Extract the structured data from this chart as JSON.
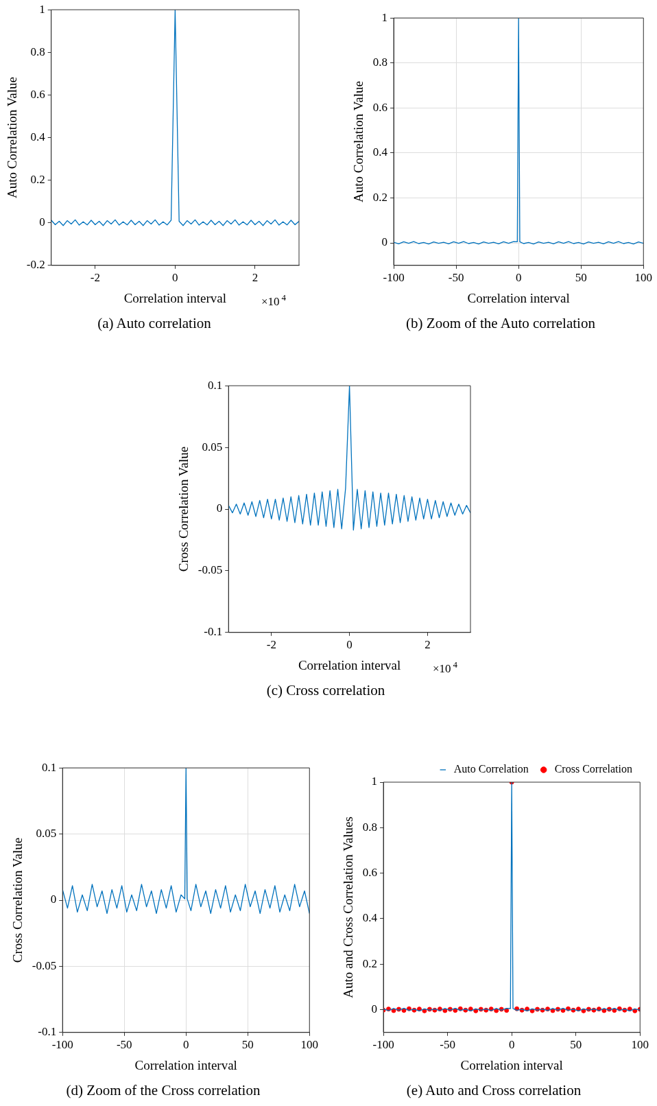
{
  "chart_data": [
    {
      "type": "line",
      "title": "(a)  Auto correlation",
      "xlabel": "Correlation interval",
      "ylabel": "Auto Correlation Value",
      "annotations": [
        "×10$^{4}$"
      ],
      "xlim": [
        -3.1,
        3.1
      ],
      "xticks": [
        -2,
        0,
        2
      ],
      "ylim": [
        -0.2,
        1
      ],
      "yticks": [
        -0.2,
        0,
        0.2,
        0.4,
        0.6,
        0.8,
        1
      ],
      "grid": false,
      "legend": false,
      "x": [
        -3.1,
        -3.0,
        -2.9,
        -2.8,
        -2.7,
        -2.6,
        -2.5,
        -2.4,
        -2.3,
        -2.2,
        -2.1,
        -2.0,
        -1.9,
        -1.8,
        -1.7,
        -1.6,
        -1.5,
        -1.4,
        -1.3,
        -1.2,
        -1.1,
        -1.0,
        -0.9,
        -0.8,
        -0.7,
        -0.6,
        -0.5,
        -0.4,
        -0.3,
        -0.2,
        -0.1,
        0,
        0.1,
        0.2,
        0.3,
        0.4,
        0.5,
        0.6,
        0.7,
        0.8,
        0.9,
        1.0,
        1.1,
        1.2,
        1.3,
        1.4,
        1.5,
        1.6,
        1.7,
        1.8,
        1.9,
        2.0,
        2.1,
        2.2,
        2.3,
        2.4,
        2.5,
        2.6,
        2.7,
        2.8,
        2.9,
        3.0,
        3.1
      ],
      "series": [
        {
          "color": "#0072bd",
          "values": [
            0.012,
            -0.009,
            0.007,
            -0.013,
            0.01,
            -0.006,
            0.014,
            -0.011,
            0.005,
            -0.01,
            0.012,
            -0.009,
            0.007,
            -0.013,
            0.01,
            -0.006,
            0.014,
            -0.011,
            0.005,
            -0.01,
            0.012,
            -0.009,
            0.007,
            -0.013,
            0.01,
            -0.006,
            0.014,
            -0.011,
            0.005,
            -0.01,
            0.012,
            1,
            0.007,
            -0.013,
            0.01,
            -0.006,
            0.014,
            -0.011,
            0.005,
            -0.01,
            0.012,
            -0.009,
            0.007,
            -0.013,
            0.01,
            -0.006,
            0.014,
            -0.011,
            0.005,
            -0.01,
            0.012,
            -0.009,
            0.007,
            -0.013,
            0.01,
            -0.006,
            0.014,
            -0.011,
            0.005,
            -0.01,
            0.012,
            -0.009,
            0.007
          ]
        }
      ]
    },
    {
      "type": "line",
      "title": "(b) Zoom of the Auto correlation",
      "xlabel": "Correlation interval",
      "ylabel": "Auto Correlation Value",
      "xlim": [
        -100,
        100
      ],
      "xticks": [
        -100,
        -50,
        0,
        50,
        100
      ],
      "ylim": [
        -0.1,
        1
      ],
      "yticks": [
        0,
        0.2,
        0.4,
        0.6,
        0.8,
        1
      ],
      "grid": true,
      "legend": false,
      "x": [
        -100,
        -96,
        -92,
        -88,
        -84,
        -80,
        -76,
        -72,
        -68,
        -64,
        -60,
        -56,
        -52,
        -48,
        -44,
        -40,
        -36,
        -32,
        -28,
        -24,
        -20,
        -16,
        -12,
        -8,
        -4,
        -1,
        0,
        1,
        4,
        8,
        12,
        16,
        20,
        24,
        28,
        32,
        36,
        40,
        44,
        48,
        52,
        56,
        60,
        64,
        68,
        72,
        76,
        80,
        84,
        88,
        92,
        96,
        100
      ],
      "series": [
        {
          "color": "#0072bd",
          "values": [
            0.003,
            -0.004,
            0.005,
            -0.002,
            0.006,
            -0.003,
            0.002,
            -0.005,
            0.004,
            -0.002,
            0.003,
            -0.004,
            0.005,
            -0.002,
            0.006,
            -0.003,
            0.002,
            -0.005,
            0.004,
            -0.002,
            0.003,
            -0.004,
            0.005,
            -0.002,
            0.006,
            0.005,
            1,
            0.005,
            -0.003,
            0.002,
            -0.005,
            0.004,
            -0.002,
            0.003,
            -0.004,
            0.005,
            -0.002,
            0.006,
            -0.003,
            0.002,
            -0.005,
            0.004,
            -0.002,
            0.003,
            -0.004,
            0.005,
            -0.002,
            0.006,
            -0.003,
            0.002,
            -0.005,
            0.004,
            -0.002
          ]
        }
      ]
    },
    {
      "type": "line",
      "title": "(c)  Cross correlation",
      "xlabel": "Correlation interval",
      "ylabel": "Cross Correlation Value",
      "annotations": [
        "×10$^{4}$"
      ],
      "xlim": [
        -3.1,
        3.1
      ],
      "xticks": [
        -2,
        0,
        2
      ],
      "ylim": [
        -0.1,
        0.1
      ],
      "yticks": [
        -0.1,
        -0.05,
        0,
        0.05,
        0.1
      ],
      "grid": false,
      "legend": false,
      "x": [
        -3.1,
        -3.0,
        -2.9,
        -2.8,
        -2.7,
        -2.6,
        -2.5,
        -2.4,
        -2.3,
        -2.2,
        -2.1,
        -2.0,
        -1.9,
        -1.8,
        -1.7,
        -1.6,
        -1.5,
        -1.4,
        -1.3,
        -1.2,
        -1.1,
        -1.0,
        -0.9,
        -0.8,
        -0.7,
        -0.6,
        -0.5,
        -0.4,
        -0.3,
        -0.2,
        -0.1,
        0,
        0.1,
        0.2,
        0.3,
        0.4,
        0.5,
        0.6,
        0.7,
        0.8,
        0.9,
        1.0,
        1.1,
        1.2,
        1.3,
        1.4,
        1.5,
        1.6,
        1.7,
        1.8,
        1.9,
        2.0,
        2.1,
        2.2,
        2.3,
        2.4,
        2.5,
        2.6,
        2.7,
        2.8,
        2.9,
        3.0,
        3.1
      ],
      "series": [
        {
          "color": "#0072bd",
          "values": [
            0.003,
            -0.003,
            0.004,
            -0.004,
            0.005,
            -0.005,
            0.006,
            -0.006,
            0.007,
            -0.007,
            0.008,
            -0.008,
            0.008,
            -0.009,
            0.009,
            -0.01,
            0.01,
            -0.011,
            0.011,
            -0.012,
            0.012,
            -0.013,
            0.013,
            -0.013,
            0.014,
            -0.014,
            0.015,
            -0.015,
            0.016,
            -0.016,
            0.017,
            0.1,
            -0.017,
            0.016,
            -0.016,
            0.015,
            -0.015,
            0.014,
            -0.014,
            0.013,
            -0.013,
            0.013,
            -0.012,
            0.012,
            -0.011,
            0.011,
            -0.01,
            0.01,
            -0.009,
            0.009,
            -0.008,
            0.008,
            -0.008,
            0.007,
            -0.007,
            0.006,
            -0.006,
            0.005,
            -0.005,
            0.004,
            -0.004,
            0.003,
            -0.003
          ]
        }
      ]
    },
    {
      "type": "line",
      "title": "(d) Zoom of the Cross correlation",
      "xlabel": "Correlation interval",
      "ylabel": "Cross Correlation Value",
      "xlim": [
        -100,
        100
      ],
      "xticks": [
        -100,
        -50,
        0,
        50,
        100
      ],
      "ylim": [
        -0.1,
        0.1
      ],
      "yticks": [
        -0.1,
        -0.05,
        0,
        0.05,
        0.1
      ],
      "grid": true,
      "legend": false,
      "x": [
        -100,
        -96,
        -92,
        -88,
        -84,
        -80,
        -76,
        -72,
        -68,
        -64,
        -60,
        -56,
        -52,
        -48,
        -44,
        -40,
        -36,
        -32,
        -28,
        -24,
        -20,
        -16,
        -12,
        -8,
        -4,
        -1,
        0,
        1,
        4,
        8,
        12,
        16,
        20,
        24,
        28,
        32,
        36,
        40,
        44,
        48,
        52,
        56,
        60,
        64,
        68,
        72,
        76,
        80,
        84,
        88,
        92,
        96,
        100
      ],
      "series": [
        {
          "color": "#0072bd",
          "values": [
            0.008,
            -0.006,
            0.011,
            -0.009,
            0.004,
            -0.008,
            0.012,
            -0.005,
            0.007,
            -0.01,
            0.008,
            -0.006,
            0.011,
            -0.009,
            0.004,
            -0.008,
            0.012,
            -0.005,
            0.007,
            -0.01,
            0.008,
            -0.006,
            0.011,
            -0.009,
            0.004,
            0.001,
            0.1,
            0.001,
            -0.008,
            0.012,
            -0.005,
            0.007,
            -0.01,
            0.008,
            -0.006,
            0.011,
            -0.009,
            0.004,
            -0.008,
            0.012,
            -0.005,
            0.007,
            -0.01,
            0.008,
            -0.006,
            0.011,
            -0.009,
            0.004,
            -0.008,
            0.012,
            -0.005,
            0.007,
            -0.01
          ]
        }
      ]
    },
    {
      "type": "line",
      "title": "(e) Auto and Cross correlation",
      "xlabel": "Correlation interval",
      "ylabel": "Auto and Cross Correlation Values",
      "xlim": [
        -100,
        100
      ],
      "xticks": [
        -100,
        -50,
        0,
        50,
        100
      ],
      "ylim": [
        -0.1,
        1
      ],
      "yticks": [
        0,
        0.2,
        0.4,
        0.6,
        0.8,
        1
      ],
      "grid": false,
      "legend": "top right",
      "x": [
        -100,
        -96,
        -92,
        -88,
        -84,
        -80,
        -76,
        -72,
        -68,
        -64,
        -60,
        -56,
        -52,
        -48,
        -44,
        -40,
        -36,
        -32,
        -28,
        -24,
        -20,
        -16,
        -12,
        -8,
        -4,
        -1,
        0,
        1,
        4,
        8,
        12,
        16,
        20,
        24,
        28,
        32,
        36,
        40,
        44,
        48,
        52,
        56,
        60,
        64,
        68,
        72,
        76,
        80,
        84,
        88,
        92,
        96,
        100
      ],
      "series": [
        {
          "name": "Auto Correlation",
          "color": "#0072bd",
          "values": [
            0.003,
            -0.004,
            0.005,
            -0.002,
            0.006,
            -0.003,
            0.002,
            -0.005,
            0.004,
            -0.002,
            0.003,
            -0.004,
            0.005,
            -0.002,
            0.006,
            -0.003,
            0.002,
            -0.005,
            0.004,
            -0.002,
            0.003,
            -0.004,
            0.005,
            -0.002,
            0.006,
            0.005,
            1,
            0.005,
            -0.003,
            0.002,
            -0.005,
            0.004,
            -0.002,
            0.003,
            -0.004,
            0.005,
            -0.002,
            0.006,
            -0.003,
            0.002,
            -0.005,
            0.004,
            -0.002,
            0.003,
            -0.004,
            0.005,
            -0.002,
            0.006,
            -0.003,
            0.002,
            -0.005,
            0.004,
            -0.002
          ]
        },
        {
          "name": "Cross Correlation",
          "type": "scatter",
          "marker": "circle",
          "color": "#ff0000",
          "x": [
            -100,
            -96,
            -92,
            -88,
            -84,
            -80,
            -76,
            -72,
            -68,
            -64,
            -60,
            -56,
            -52,
            -48,
            -44,
            -40,
            -36,
            -32,
            -28,
            -24,
            -20,
            -16,
            -12,
            -8,
            -4,
            0,
            4,
            8,
            12,
            16,
            20,
            24,
            28,
            32,
            36,
            40,
            44,
            48,
            52,
            56,
            60,
            64,
            68,
            72,
            76,
            80,
            84,
            88,
            92,
            96,
            100
          ],
          "values": [
            -0.002,
            0.003,
            -0.004,
            0.002,
            -0.003,
            0.004,
            -0.002,
            0.003,
            -0.005,
            0.002,
            -0.002,
            0.003,
            -0.004,
            0.002,
            -0.003,
            0.004,
            -0.002,
            0.003,
            -0.005,
            0.002,
            -0.002,
            0.003,
            -0.004,
            0.002,
            -0.003,
            1,
            0.004,
            -0.002,
            0.003,
            -0.005,
            0.002,
            -0.002,
            0.003,
            -0.004,
            0.002,
            -0.003,
            0.004,
            -0.002,
            0.003,
            -0.005,
            0.002,
            -0.002,
            0.003,
            -0.004,
            0.002,
            -0.003,
            0.004,
            -0.002,
            0.003,
            -0.005,
            0.002
          ]
        }
      ]
    }
  ]
}
